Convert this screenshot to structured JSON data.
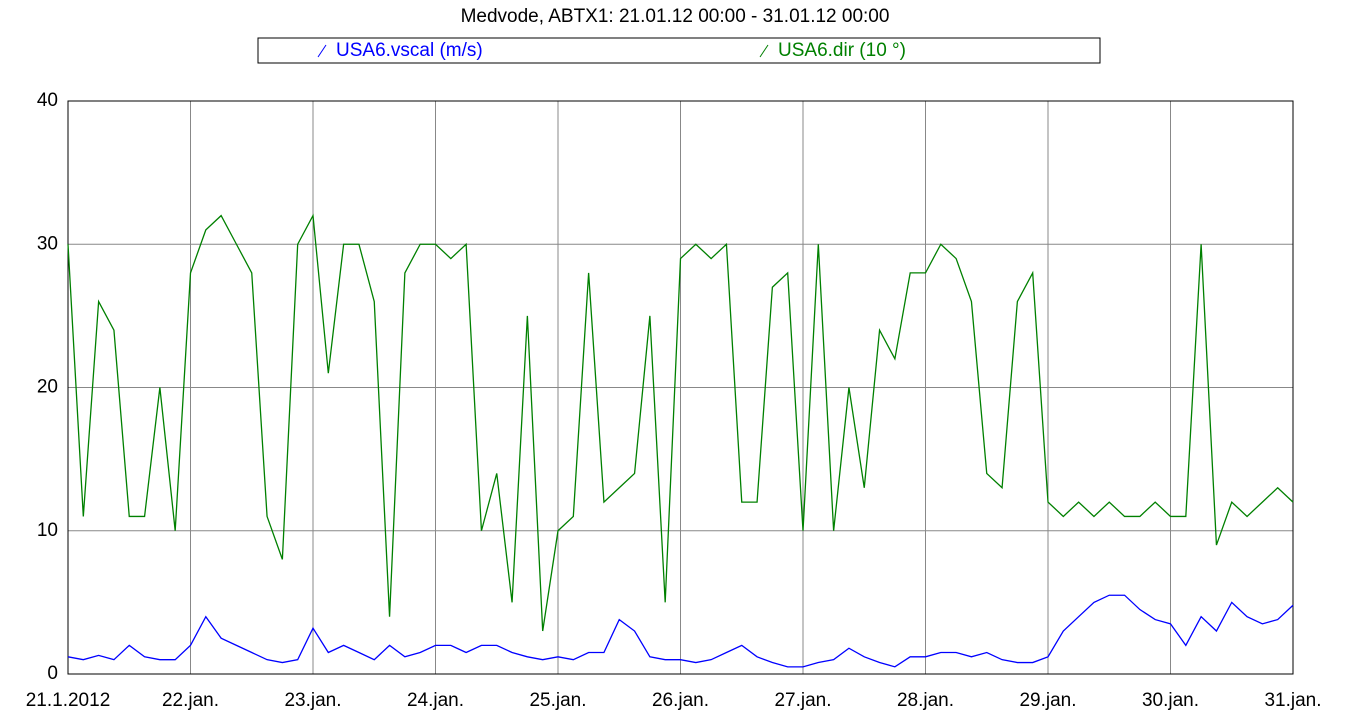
{
  "chart_data": {
    "type": "line",
    "title": "Medvode, ABTX1: 21.01.12 00:00 - 31.01.12 00:00",
    "x": [
      0,
      0.125,
      0.25,
      0.375,
      0.5,
      0.625,
      0.75,
      0.875,
      1,
      1.125,
      1.25,
      1.375,
      1.5,
      1.625,
      1.75,
      1.875,
      2,
      2.125,
      2.25,
      2.375,
      2.5,
      2.625,
      2.75,
      2.875,
      3,
      3.125,
      3.25,
      3.375,
      3.5,
      3.625,
      3.75,
      3.875,
      4,
      4.125,
      4.25,
      4.375,
      4.5,
      4.625,
      4.75,
      4.875,
      5,
      5.125,
      5.25,
      5.375,
      5.5,
      5.625,
      5.75,
      5.875,
      6,
      6.125,
      6.25,
      6.375,
      6.5,
      6.625,
      6.75,
      6.875,
      7,
      7.125,
      7.25,
      7.375,
      7.5,
      7.625,
      7.75,
      7.875,
      8,
      8.125,
      8.25,
      8.375,
      8.5,
      8.625,
      8.75,
      8.875,
      9,
      9.125,
      9.25,
      9.375,
      9.5,
      9.625,
      9.75,
      9.875,
      10
    ],
    "series": [
      {
        "name": "USA6.vscal (m/s)",
        "color": "#0000ff",
        "values": [
          1.2,
          1,
          1.3,
          1,
          2,
          1.2,
          1,
          1,
          2,
          4,
          2.5,
          2,
          1.5,
          1,
          0.8,
          1,
          3.2,
          1.5,
          2,
          1.5,
          1,
          2,
          1.2,
          1.5,
          2,
          2,
          1.5,
          2,
          2,
          1.5,
          1.2,
          1,
          1.2,
          1,
          1.5,
          1.5,
          3.8,
          3,
          1.2,
          1,
          1,
          0.8,
          1,
          1.5,
          2,
          1.2,
          0.8,
          0.5,
          0.5,
          0.8,
          1,
          1.8,
          1.2,
          0.8,
          0.5,
          1.2,
          1.2,
          1.5,
          1.5,
          1.2,
          1.5,
          1,
          0.8,
          0.8,
          1.2,
          3,
          4,
          5,
          5.5,
          5.5,
          4.5,
          3.8,
          3.5,
          2,
          4,
          3,
          5,
          4,
          3.5,
          3.8,
          4.8
        ]
      },
      {
        "name": "USA6.dir (10 °)",
        "color": "#008000",
        "values": [
          30,
          11,
          26,
          24,
          11,
          11,
          20,
          10,
          28,
          31,
          32,
          30,
          28,
          11,
          8,
          30,
          32,
          21,
          30,
          30,
          26,
          4,
          28,
          30,
          30,
          29,
          30,
          10,
          14,
          5,
          25,
          3,
          10,
          11,
          28,
          12,
          13,
          14,
          25,
          5,
          29,
          30,
          29,
          30,
          12,
          12,
          27,
          28,
          10,
          30,
          10,
          20,
          13,
          24,
          22,
          28,
          28,
          30,
          29,
          26,
          14,
          13,
          26,
          28,
          12,
          11,
          12,
          11,
          12,
          11,
          11,
          12,
          11,
          11,
          30,
          9,
          12,
          11,
          12,
          13,
          12
        ]
      }
    ],
    "xlim": [
      0,
      10
    ],
    "xticks": [
      {
        "value": 0,
        "label": "21.1.2012"
      },
      {
        "value": 1,
        "label": "22.jan."
      },
      {
        "value": 2,
        "label": "23.jan."
      },
      {
        "value": 3,
        "label": "24.jan."
      },
      {
        "value": 4,
        "label": "25.jan."
      },
      {
        "value": 5,
        "label": "26.jan."
      },
      {
        "value": 6,
        "label": "27.jan."
      },
      {
        "value": 7,
        "label": "28.jan."
      },
      {
        "value": 8,
        "label": "29.jan."
      },
      {
        "value": 9,
        "label": "30.jan."
      },
      {
        "value": 10,
        "label": "31.jan."
      }
    ],
    "ylim": [
      0,
      40
    ],
    "yticks": [
      0,
      10,
      20,
      30,
      40
    ],
    "grid": true
  }
}
